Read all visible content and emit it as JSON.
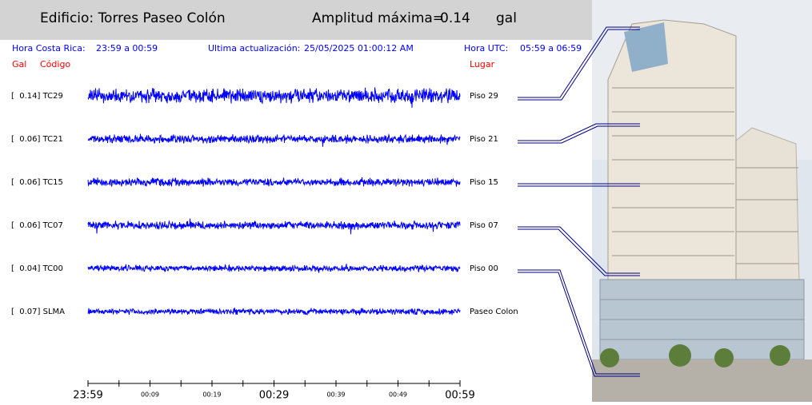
{
  "header": {
    "building": "Edificio: Torres Paseo Colón",
    "amplitude_label": "Amplitud máxima=",
    "amplitude": "0.14",
    "unit": "gal"
  },
  "info": {
    "local_label": "Hora Costa Rica:",
    "local_range": "23:59 a 00:59",
    "update_label": "Ultima actualización:",
    "update_time": "25/05/2025 01:00:12 AM",
    "utc_label": "Hora UTC:",
    "utc_range": "05:59 a 06:59"
  },
  "columns": {
    "gal": "Gal",
    "code": "Código",
    "place": "Lugar"
  },
  "channels": [
    {
      "label": "[  0.14] TC29",
      "place": "Piso 29"
    },
    {
      "label": "[  0.06] TC21",
      "place": "Piso 21"
    },
    {
      "label": "[  0.06] TC15",
      "place": "Piso 15"
    },
    {
      "label": "[  0.06] TC07",
      "place": "Piso 07"
    },
    {
      "label": "[  0.04] TC00",
      "place": "Piso 00"
    },
    {
      "label": "[  0.07] SLMA",
      "place": "Paseo Colon"
    }
  ],
  "time_axis": {
    "major": [
      "23:59",
      "00:29",
      "00:59"
    ],
    "minor": [
      "00:09",
      "00:19",
      "00:39",
      "00:49"
    ]
  }
}
